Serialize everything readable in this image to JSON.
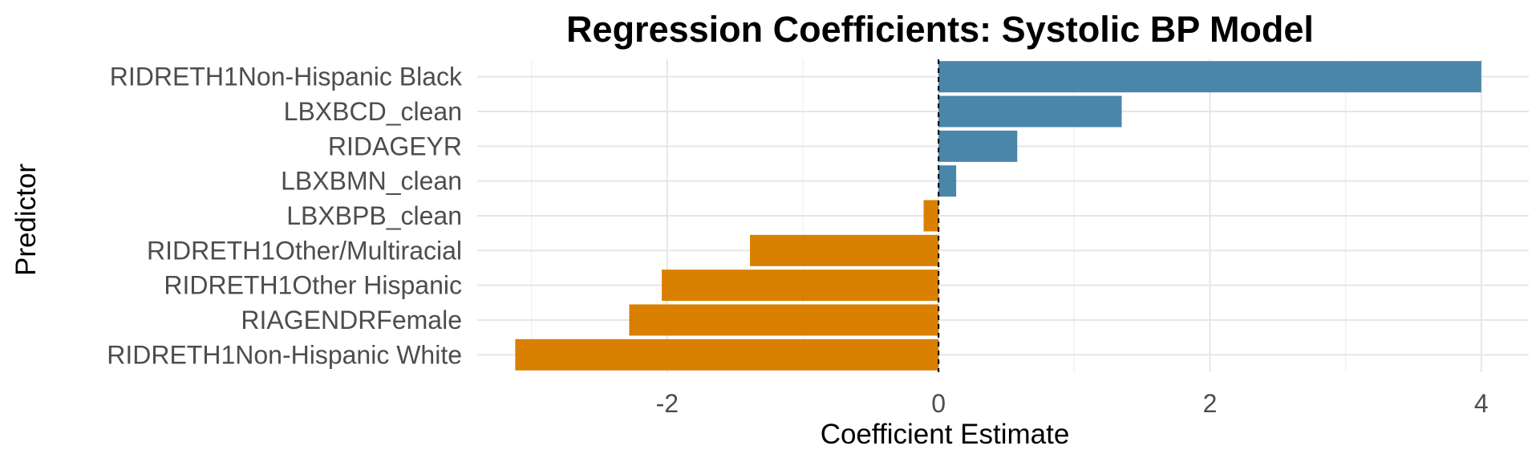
{
  "chart_data": {
    "type": "bar",
    "orientation": "horizontal",
    "title": "Regression Coefficients: Systolic BP Model",
    "xlabel": "Coefficient Estimate",
    "ylabel": "Predictor",
    "categories": [
      "RIDRETH1Non-Hispanic Black",
      "LBXBCD_clean",
      "RIDAGEYR",
      "LBXBMN_clean",
      "LBXBPB_clean",
      "RIDRETH1Other/Multiracial",
      "RIDRETH1Other Hispanic",
      "RIAGENDRFemale",
      "RIDRETH1Non-Hispanic White"
    ],
    "values": [
      4.0,
      1.35,
      0.58,
      0.13,
      -0.11,
      -1.39,
      -2.04,
      -2.28,
      -3.12
    ],
    "xlim": [
      -3.4,
      4.35
    ],
    "x_ticks": [
      -2,
      0,
      2,
      4
    ],
    "x_tick_labels": [
      "-2",
      "0",
      "2",
      "4"
    ],
    "reference_line": 0,
    "grid": true,
    "legend": "none",
    "colors": {
      "positive": "#4a86aa",
      "negative": "#d98000"
    }
  }
}
